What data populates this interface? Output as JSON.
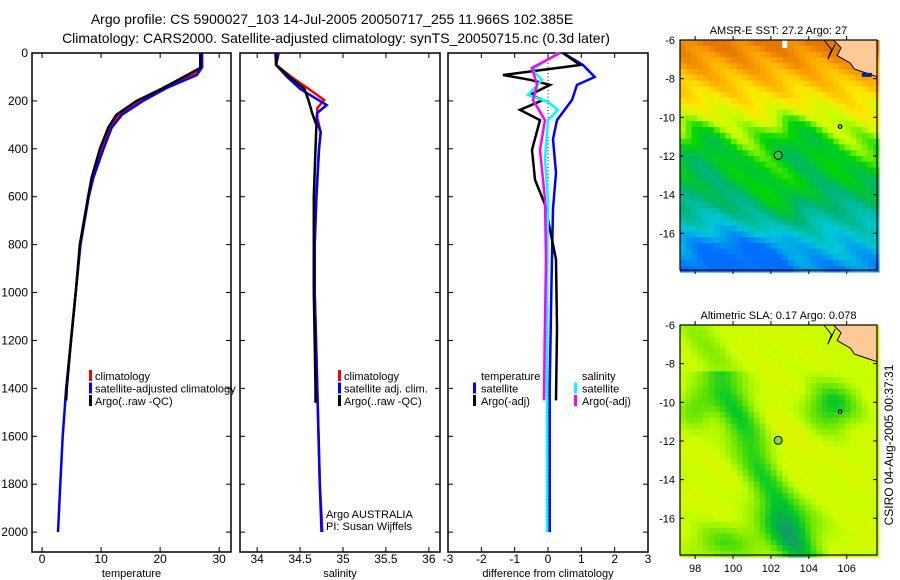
{
  "title": {
    "line1": "Argo profile: CS 5900027_103 14-Jul-2005 20050717_255 11.966S 102.385E",
    "line2": "Climatology: CARS2000. Satellite-adjusted climatology: synTS_20050715.nc (0.3d later)"
  },
  "footer_stamp": "CSIRO 04-Aug-2005 00:37:31",
  "colors": {
    "climatology": "#ff0000",
    "satellite": "#0000ff",
    "argo": "#000000",
    "sal_satellite": "#00ffff",
    "sal_argo": "#ff00ff",
    "land": "#fdca96"
  },
  "chart_data": [
    {
      "type": "line",
      "id": "temperature",
      "xlabel": "temperature",
      "ylabel": "",
      "xlim": [
        -1.7,
        32
      ],
      "ylim": [
        2083,
        0
      ],
      "xticks": [
        0,
        10,
        20,
        30
      ],
      "xtick_labels": [
        "0",
        "10",
        "20",
        "30"
      ],
      "yticks": [
        0,
        200,
        400,
        600,
        800,
        1000,
        1200,
        1400,
        1600,
        1800,
        2000
      ],
      "ytick_labels": [
        "0",
        "200",
        "400",
        "600",
        "800",
        "1000",
        "1200",
        "1400",
        "1600",
        "1800",
        "2000"
      ],
      "legend": {
        "placement": "middle-right",
        "entries": [
          "climatology",
          "satellite-adjusted climatology",
          "Argo(..raw -QC)"
        ]
      },
      "series": [
        {
          "name": "climatology",
          "color": "#ff0000",
          "points": [
            [
              0,
              26.9
            ],
            [
              60,
              26.9
            ],
            [
              90,
              25.6
            ],
            [
              146,
              20.8
            ],
            [
              200,
              16.6
            ],
            [
              258,
              13.0
            ],
            [
              312,
              11.5
            ],
            [
              400,
              10.1
            ],
            [
              520,
              8.6
            ],
            [
              600,
              7.9
            ],
            [
              800,
              6.5
            ],
            [
              1000,
              5.7
            ],
            [
              1200,
              4.9
            ],
            [
              1400,
              4.1
            ],
            [
              1460,
              3.9
            ]
          ]
        },
        {
          "name": "satellite-adjusted climatology",
          "color": "#0000ff",
          "points": [
            [
              0,
              27.1
            ],
            [
              60,
              27.1
            ],
            [
              92,
              26.2
            ],
            [
              146,
              21.1
            ],
            [
              200,
              17.1
            ],
            [
              258,
              13.5
            ],
            [
              312,
              11.8
            ],
            [
              400,
              10.4
            ],
            [
              520,
              8.7
            ],
            [
              600,
              7.9
            ],
            [
              800,
              6.5
            ],
            [
              1000,
              5.7
            ],
            [
              1200,
              4.9
            ],
            [
              1400,
              4.1
            ],
            [
              1600,
              3.5
            ],
            [
              1800,
              3.1
            ],
            [
              2000,
              2.7
            ]
          ]
        },
        {
          "name": "Argo(..raw -QC)",
          "color": "#000000",
          "points": [
            [
              0,
              26.8
            ],
            [
              62,
              26.8
            ],
            [
              92,
              24.6
            ],
            [
              146,
              20.5
            ],
            [
              200,
              16.0
            ],
            [
              258,
              12.6
            ],
            [
              312,
              11.2
            ],
            [
              400,
              9.8
            ],
            [
              520,
              8.4
            ],
            [
              600,
              7.8
            ],
            [
              800,
              6.4
            ],
            [
              1000,
              5.7
            ],
            [
              1200,
              4.9
            ],
            [
              1400,
              4.2
            ],
            [
              1450,
              4.1
            ]
          ]
        }
      ]
    },
    {
      "type": "line",
      "id": "salinity",
      "xlabel": "salinity",
      "xlim": [
        33.8,
        36.13
      ],
      "ylim": [
        2083,
        0
      ],
      "xticks": [
        34,
        34.5,
        35,
        35.5,
        36
      ],
      "xtick_labels": [
        "34",
        "34.5",
        "35",
        "35.5",
        "36"
      ],
      "legend": {
        "placement": "middle-right",
        "entries": [
          "climatology",
          "satellite adj. clim.",
          "Argo(..raw -QC)"
        ]
      },
      "annotation": [
        "Argo AUSTRALIA",
        "PI: Susan Wijffels"
      ],
      "series": [
        {
          "name": "climatology",
          "color": "#ff0000",
          "points": [
            [
              0,
              34.21
            ],
            [
              50,
              34.22
            ],
            [
              100,
              34.4
            ],
            [
              150,
              34.6
            ],
            [
              196,
              34.78
            ],
            [
              230,
              34.7
            ],
            [
              270,
              34.7
            ],
            [
              330,
              34.74
            ],
            [
              400,
              34.72
            ],
            [
              600,
              34.69
            ],
            [
              800,
              34.67
            ],
            [
              1000,
              34.67
            ],
            [
              1400,
              34.7
            ],
            [
              1800,
              34.73
            ],
            [
              2000,
              34.76
            ]
          ]
        },
        {
          "name": "satellite adj. clim.",
          "color": "#0000ff",
          "points": [
            [
              0,
              34.25
            ],
            [
              50,
              34.22
            ],
            [
              100,
              34.35
            ],
            [
              150,
              34.5
            ],
            [
              217,
              34.81
            ],
            [
              250,
              34.7
            ],
            [
              280,
              34.69
            ],
            [
              330,
              34.74
            ],
            [
              400,
              34.72
            ],
            [
              600,
              34.69
            ],
            [
              800,
              34.67
            ],
            [
              1000,
              34.67
            ],
            [
              1400,
              34.7
            ],
            [
              1800,
              34.73
            ],
            [
              2000,
              34.75
            ]
          ]
        },
        {
          "name": "Argo(..raw -QC)",
          "color": "#000000",
          "points": [
            [
              0,
              34.22
            ],
            [
              50,
              34.22
            ],
            [
              100,
              34.38
            ],
            [
              150,
              34.55
            ],
            [
              200,
              34.6
            ],
            [
              250,
              34.64
            ],
            [
              300,
              34.69
            ],
            [
              400,
              34.68
            ],
            [
              600,
              34.66
            ],
            [
              800,
              34.66
            ],
            [
              1000,
              34.66
            ],
            [
              1200,
              34.67
            ],
            [
              1400,
              34.68
            ],
            [
              1460,
              34.68
            ]
          ]
        }
      ]
    },
    {
      "type": "line",
      "id": "difference",
      "xlabel": "difference from climatology",
      "xlim": [
        -3,
        3
      ],
      "ylim": [
        2083,
        0
      ],
      "xticks": [
        -3,
        -2,
        -1,
        0,
        1,
        2,
        3
      ],
      "xtick_labels": [
        "-3",
        "-2",
        "-1",
        "0",
        "1",
        "2",
        "3"
      ],
      "legend": {
        "placement": "middle",
        "entries": [
          "temperature",
          "satellite",
          "Argo(-adj)",
          "salinity",
          "satellite",
          "Argo(-adj)"
        ]
      },
      "series": [
        {
          "name": "temperature satellite",
          "color": "#0000ff",
          "points": [
            [
              0,
              0.45
            ],
            [
              50,
              1.05
            ],
            [
              100,
              1.4
            ],
            [
              133,
              0.87
            ],
            [
              196,
              0.72
            ],
            [
              280,
              0.27
            ],
            [
              360,
              0.15
            ],
            [
              500,
              0.24
            ],
            [
              650,
              0.15
            ],
            [
              1000,
              0.1
            ],
            [
              1400,
              0.05
            ],
            [
              2000,
              0.05
            ]
          ]
        },
        {
          "name": "temperature Argo(-adj)",
          "color": "#000000",
          "points": [
            [
              0,
              0.45
            ],
            [
              50,
              0.96
            ],
            [
              92,
              -1.35
            ],
            [
              112,
              -0.54
            ],
            [
              133,
              0.06
            ],
            [
              175,
              -0.54
            ],
            [
              196,
              -0.15
            ],
            [
              237,
              -0.84
            ],
            [
              280,
              -0.24
            ],
            [
              404,
              -0.48
            ],
            [
              529,
              -0.39
            ],
            [
              633,
              -0.09
            ],
            [
              862,
              0.24
            ],
            [
              1150,
              0.27
            ],
            [
              1450,
              0.24
            ]
          ]
        },
        {
          "name": "salinity satellite",
          "color": "#00ffff",
          "points": [
            [
              0,
              0.3
            ],
            [
              70,
              -0.48
            ],
            [
              112,
              -0.18
            ],
            [
              175,
              -0.6
            ],
            [
              204,
              0.0
            ],
            [
              237,
              0.3
            ],
            [
              280,
              0.0
            ],
            [
              446,
              -0.09
            ],
            [
              612,
              0.0
            ],
            [
              1000,
              -0.03
            ],
            [
              1500,
              -0.03
            ],
            [
              2000,
              -0.03
            ]
          ]
        },
        {
          "name": "salinity Argo(-adj)",
          "color": "#ff00ff",
          "points": [
            [
              0,
              0.36
            ],
            [
              62,
              -0.48
            ],
            [
              133,
              -0.33
            ],
            [
              196,
              -0.45
            ],
            [
              280,
              -0.09
            ],
            [
              404,
              -0.24
            ],
            [
              612,
              -0.09
            ],
            [
              862,
              -0.06
            ],
            [
              1200,
              -0.1
            ],
            [
              1450,
              -0.12
            ]
          ]
        }
      ]
    }
  ],
  "maps": [
    {
      "id": "sst",
      "title": "AMSR-E SST: 27.2 Argo: 27",
      "lon_range": [
        97.2,
        107.6
      ],
      "lat_range": [
        -17.9,
        -6
      ],
      "lat_ticks": [
        "-6",
        "-8",
        "-10",
        "-12",
        "-14",
        "-16"
      ],
      "lon_ticks": [
        "98",
        "100",
        "102",
        "104",
        "106"
      ],
      "show_lon_labels": false
    },
    {
      "id": "sla",
      "title": "Altimetric SLA: 0.17 Argo: 0.078",
      "lon_range": [
        97.2,
        107.6
      ],
      "lat_range": [
        -17.9,
        -6
      ],
      "lat_ticks": [
        "-6",
        "-8",
        "-10",
        "-12",
        "-14",
        "-16"
      ],
      "lon_ticks": [
        "98",
        "100",
        "102",
        "104",
        "106"
      ],
      "show_lon_labels": true
    }
  ],
  "argo_position": {
    "lat": -11.966,
    "lon": 102.385
  }
}
